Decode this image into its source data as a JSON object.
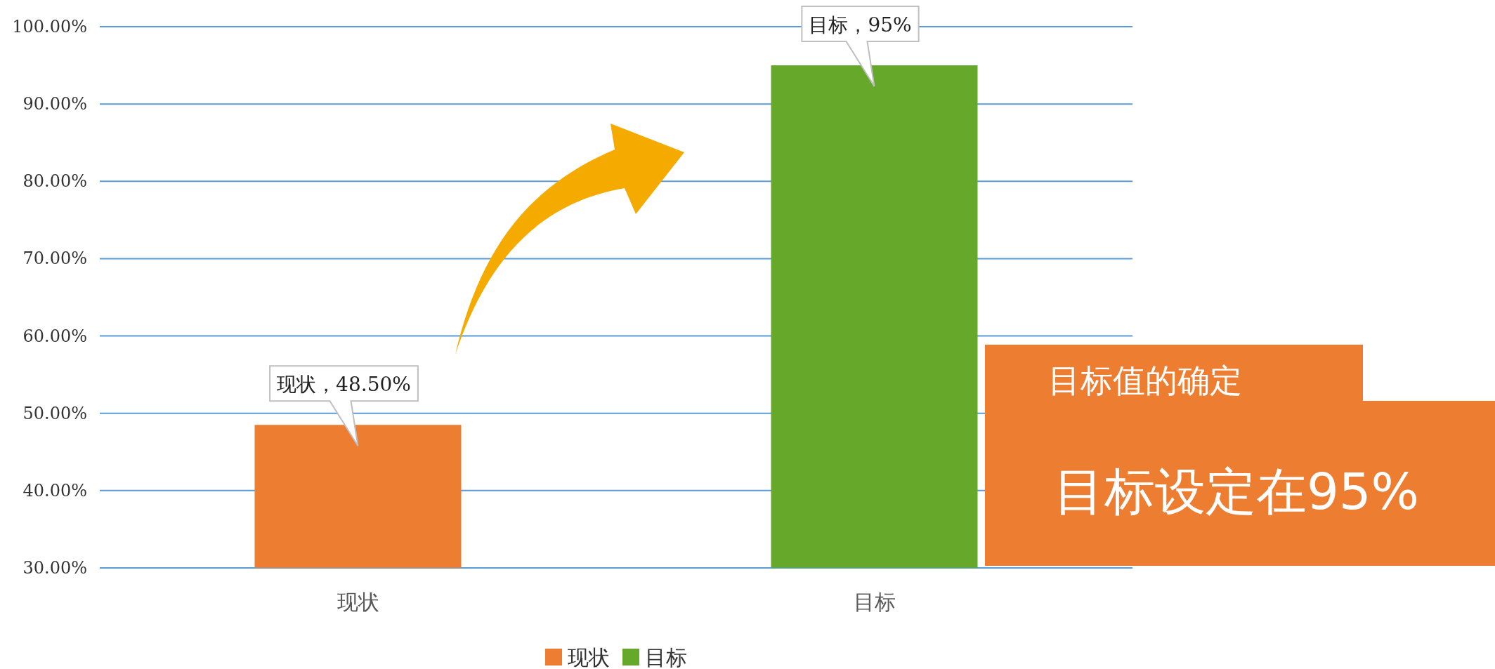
{
  "chart_data": {
    "type": "bar",
    "categories": [
      "现状",
      "目标"
    ],
    "series": [
      {
        "name": "现状",
        "color": "#ed7d31",
        "values": [
          48.5,
          null
        ],
        "value_labels": [
          "现状，48.50%",
          null
        ]
      },
      {
        "name": "目标",
        "color": "#66a82a",
        "values": [
          null,
          95
        ],
        "value_labels": [
          null,
          "目标，95%"
        ]
      }
    ],
    "ylim": [
      30,
      100
    ],
    "yticks": [
      {
        "value": 30,
        "label": "30.00%"
      },
      {
        "value": 40,
        "label": "40.00%"
      },
      {
        "value": 50,
        "label": "50.00%"
      },
      {
        "value": 60,
        "label": "60.00%"
      },
      {
        "value": 70,
        "label": "70.00%"
      },
      {
        "value": 80,
        "label": "80.00%"
      },
      {
        "value": 90,
        "label": "90.00%"
      },
      {
        "value": 100,
        "label": "100.00%"
      }
    ],
    "grid": "y",
    "legend": "bottom",
    "annotations": [
      "目标值的确定",
      "目标设定在95%"
    ]
  }
}
